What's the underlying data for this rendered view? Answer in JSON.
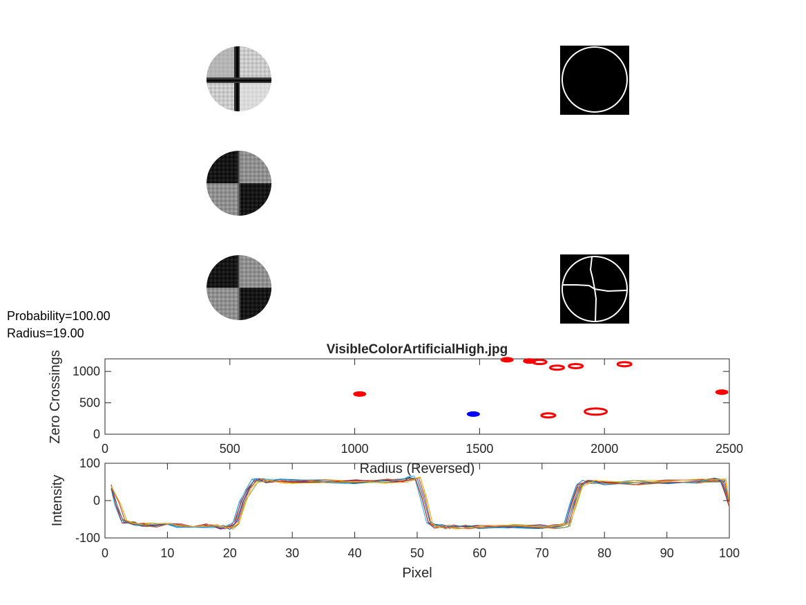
{
  "info": {
    "probability_label": "Probability=100.00",
    "radius_label": "Radius=19.00"
  },
  "thumbnails": [
    {
      "name": "target-crosshair-grayscale",
      "type": "circular-crop"
    },
    {
      "name": "target-checker-original",
      "type": "circular-crop"
    },
    {
      "name": "target-checker-enhanced",
      "type": "circular-crop"
    },
    {
      "name": "edge-map-circle",
      "type": "binary-edge"
    },
    {
      "name": "edge-map-cross",
      "type": "binary-edge"
    }
  ],
  "colors": {
    "red": "#ff0000",
    "blue": "#0000ff",
    "axis": "#262626",
    "series": [
      "#0072bd",
      "#d95319",
      "#edb120",
      "#7e2f8e",
      "#77ac30",
      "#4dbeee",
      "#a2142f"
    ]
  },
  "chart_data": [
    {
      "type": "scatter",
      "title": "VisibleColorArtificialHigh.jpg",
      "xlabel": "Radius (Reversed)",
      "ylabel": "Zero Crossings",
      "xlim": [
        0,
        2500
      ],
      "ylim": [
        0,
        1200
      ],
      "xticks": [
        "0",
        "500",
        "1000",
        "1500",
        "2000",
        "2500"
      ],
      "yticks": [
        "0",
        "500",
        "1000"
      ],
      "grid": false,
      "points": [
        {
          "x": 1020,
          "y": 640,
          "color": "red",
          "filled": true
        },
        {
          "x": 1475,
          "y": 320,
          "color": "blue",
          "filled": true
        },
        {
          "x": 1610,
          "y": 1185,
          "color": "red",
          "filled": true
        },
        {
          "x": 1700,
          "y": 1165,
          "color": "red",
          "filled": true
        },
        {
          "x": 1740,
          "y": 1150,
          "color": "red",
          "filled": false
        },
        {
          "x": 1775,
          "y": 300,
          "color": "red",
          "filled": false
        },
        {
          "x": 1810,
          "y": 1060,
          "color": "red",
          "filled": false
        },
        {
          "x": 1885,
          "y": 1085,
          "color": "red",
          "filled": false
        },
        {
          "x": 1965,
          "y": 360,
          "color": "red",
          "filled": false
        },
        {
          "x": 2080,
          "y": 1115,
          "color": "red",
          "filled": false
        },
        {
          "x": 2470,
          "y": 670,
          "color": "red",
          "filled": true
        }
      ]
    },
    {
      "type": "line",
      "title": "",
      "xlabel": "Pixel",
      "ylabel": "Intensity",
      "xlim": [
        0,
        100
      ],
      "ylim": [
        -100,
        100
      ],
      "xticks": [
        "0",
        "10",
        "20",
        "30",
        "40",
        "50",
        "60",
        "70",
        "80",
        "90",
        "100"
      ],
      "yticks": [
        "-100",
        "0",
        "100"
      ],
      "grid": false,
      "profile": {
        "x": [
          1,
          2,
          3,
          4,
          5,
          6,
          7,
          8,
          10,
          12,
          14,
          16,
          18,
          19,
          20,
          21,
          22,
          23,
          24,
          25,
          26,
          28,
          30,
          35,
          40,
          45,
          48,
          49,
          50,
          51,
          52,
          53,
          54,
          55,
          56,
          58,
          60,
          65,
          70,
          72,
          73,
          74,
          75,
          76,
          77,
          78,
          80,
          85,
          90,
          95,
          98,
          99,
          100
        ],
        "y": [
          38,
          -10,
          -55,
          -58,
          -62,
          -64,
          -65,
          -66,
          -66,
          -67,
          -68,
          -68,
          -70,
          -71,
          -72,
          -60,
          -5,
          30,
          52,
          54,
          53,
          52,
          51,
          52,
          51,
          52,
          55,
          60,
          62,
          10,
          -60,
          -68,
          -70,
          -71,
          -71,
          -70,
          -69,
          -69,
          -70,
          -70,
          -68,
          -65,
          -10,
          40,
          50,
          50,
          47,
          48,
          50,
          52,
          55,
          53,
          -15
        ]
      },
      "series_count": 10
    }
  ]
}
